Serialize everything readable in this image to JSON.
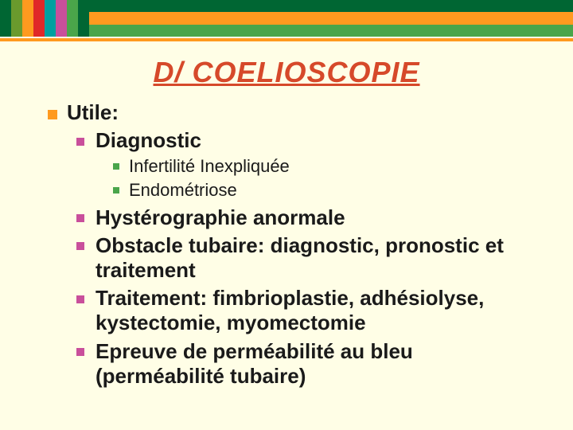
{
  "colors": {
    "background": "#fffee6",
    "title": "#d6492a",
    "text": "#1a1a1a",
    "bullet_lvl1": "#ff9a1f",
    "bullet_lvl2": "#c94f9b",
    "bullet_lvl3": "#4aa54a",
    "underline": "#ff9a1f",
    "topbar_segments": [
      "#006633",
      "#6a9a2d",
      "#ff9a1f",
      "#e02828",
      "#00a0a0",
      "#c94f9b",
      "#4aa54a",
      "#006633"
    ],
    "topbar_bands": [
      "#006633",
      "#ff9a1f",
      "#4aa54a"
    ]
  },
  "title": "D/ COELIOSCOPIE",
  "items": [
    {
      "label": "Utile:",
      "children": [
        {
          "label": "Diagnostic",
          "children": [
            {
              "label": "Infertilité Inexpliquée"
            },
            {
              "label": "Endométriose"
            }
          ]
        },
        {
          "label": "Hystérographie anormale"
        },
        {
          "label": "Obstacle tubaire: diagnostic, pronostic et traitement"
        },
        {
          "label": "Traitement: fimbrioplastie, adhésiolyse, kystectomie, myomectomie"
        },
        {
          "label": "Epreuve de perméabilité au bleu (perméabilité tubaire)"
        }
      ]
    }
  ]
}
